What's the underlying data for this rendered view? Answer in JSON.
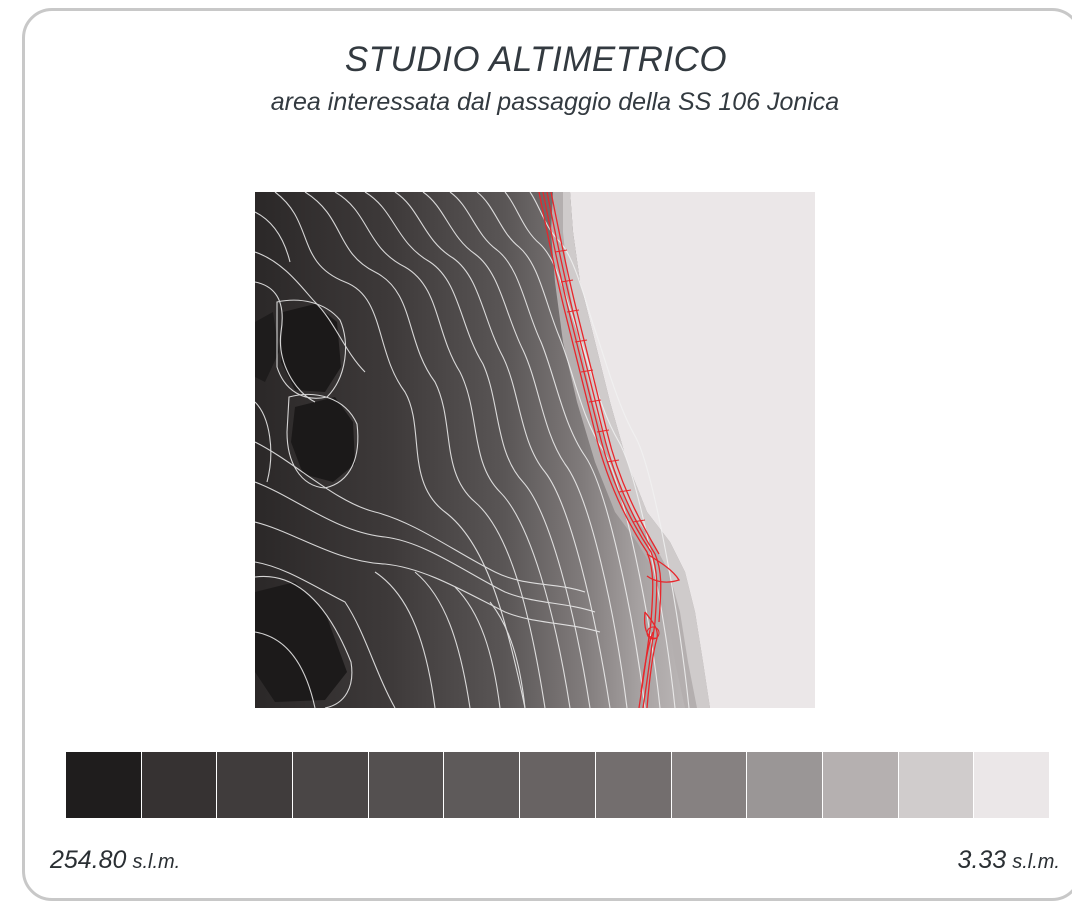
{
  "title": "STUDIO ALTIMETRICO",
  "subtitle": "area interessata dal passaggio della SS 106 Jonica",
  "legend": {
    "colors": [
      "#1f1d1d",
      "#363232",
      "#403c3c",
      "#4a4646",
      "#545050",
      "#5e5a5a",
      "#686363",
      "#736e6e",
      "#868181",
      "#9a9696",
      "#b5b0b0",
      "#d0cccc",
      "#ebe7e8"
    ],
    "max_value": "254.80",
    "max_unit": "s.l.m.",
    "min_value": "3.33",
    "min_unit": "s.l.m."
  },
  "map": {
    "sea_color": "#ebe7e8",
    "contour_color": "#f2f2f2",
    "road_color": "#e8262b"
  }
}
